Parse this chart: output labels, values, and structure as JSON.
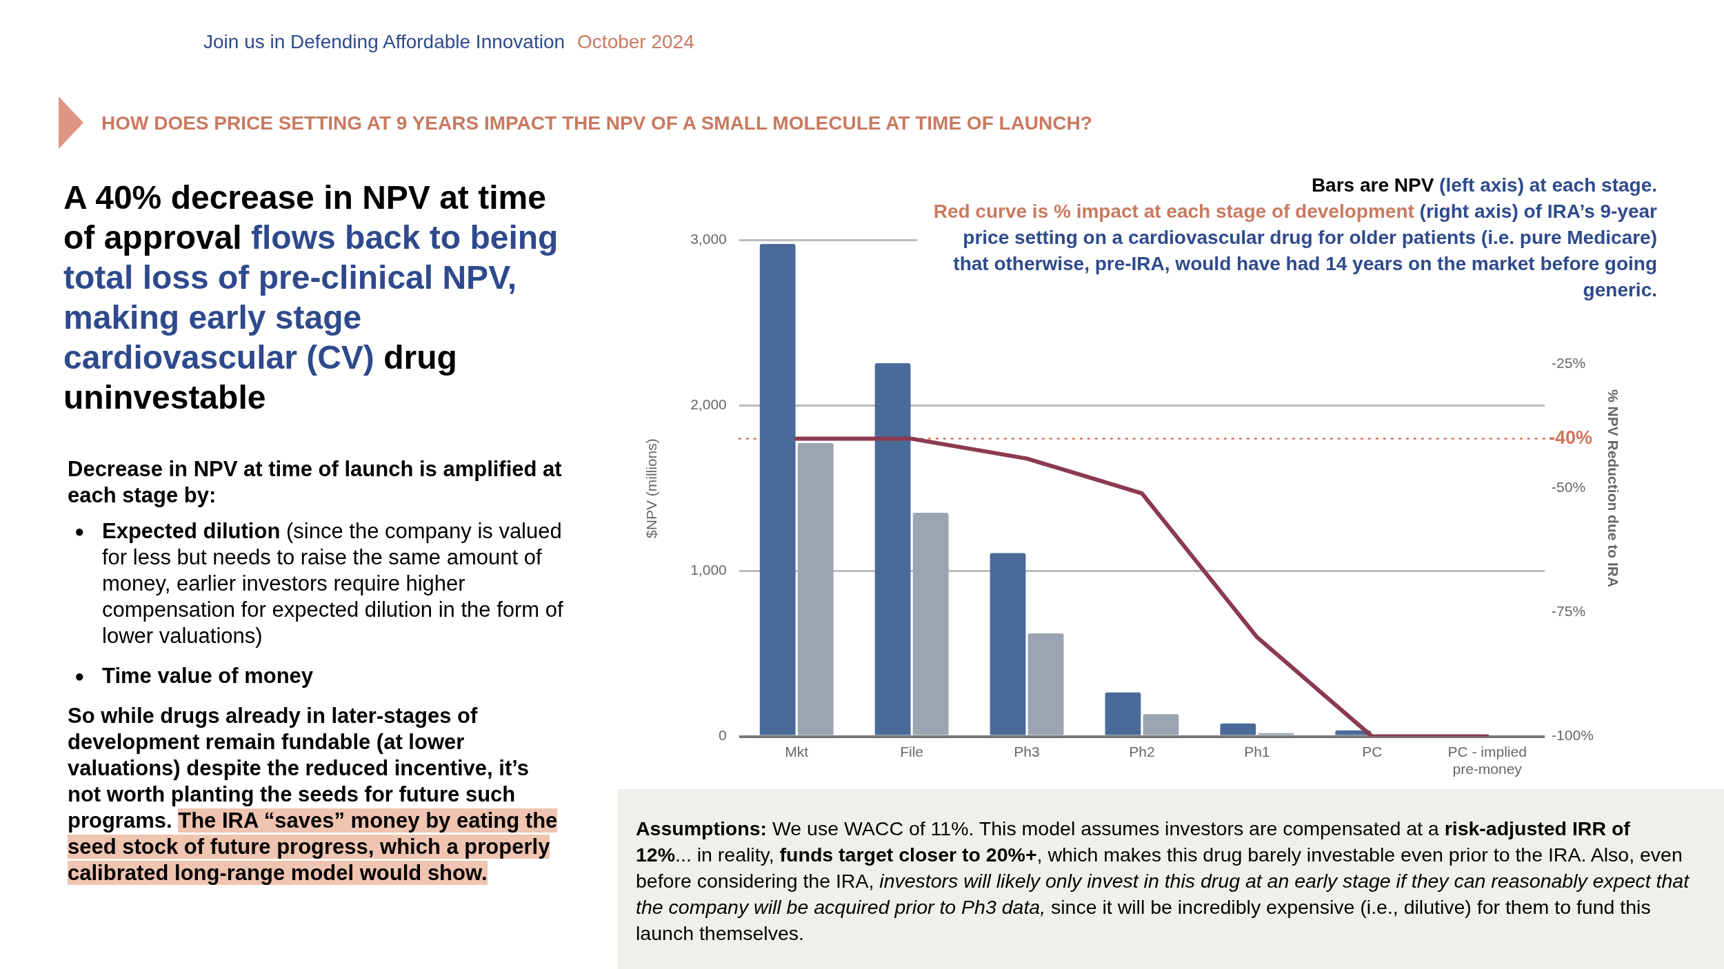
{
  "chart_data": {
    "type": "bar",
    "title": "HOW DOES PRICE SETTING AT 9 YEARS IMPACT THE NPV OF A SMALL MOLECULE AT TIME OF LAUNCH?",
    "ylabel": "$NPV (millions)",
    "y2label": "% NPV Reduction due to IRA",
    "categories": [
      "Mkt",
      "File",
      "Ph3",
      "Ph2",
      "Ph1",
      "PC",
      "PC - implied pre-money"
    ],
    "series": [
      {
        "color": "#4a6a99",
        "values": [
          2978,
          2257,
          1109,
          266,
          79,
          37,
          null
        ]
      },
      {
        "color": "#9aa5b1",
        "values": [
          1774,
          1353,
          623,
          135,
          20,
          null,
          null
        ]
      },
      {
        "type": "line",
        "axis": "y2",
        "color": "#8b3a4f",
        "values": [
          -40,
          -40,
          -44,
          -51,
          -80,
          -100,
          -100
        ]
      }
    ],
    "ylim": [
      0,
      3000
    ],
    "yticks": [
      0,
      {
        "value": 1000,
        "label": "1,000"
      },
      {
        "value": 2000,
        "label": "2,000"
      },
      {
        "value": 3000,
        "label": "3,000"
      }
    ],
    "y2lim": [
      -100,
      0
    ],
    "y2ticks": [
      {
        "value": -25,
        "label": "-25%"
      },
      {
        "value": -50,
        "label": "-50%"
      },
      {
        "value": -75,
        "label": "-75%"
      },
      {
        "value": -100,
        "label": "-100%"
      }
    ],
    "ref_lines": [
      {
        "axis": "y2",
        "value": -40,
        "label": "-40%",
        "color": "#d0745a",
        "line_style": "dotted"
      }
    ],
    "grid": "y",
    "legend": false,
    "marker": "none",
    "line_style": "solid",
    "annotations": [
      "Join us in Defending Affordable Innovation",
      "October 2024",
      "A 40% decrease in NPV at time of approval ",
      "flows back to being total loss of pre-clinical NPV, making early stage cardiovascular (CV)",
      " drug uninvestable",
      "Decrease in NPV at time of launch is amplified at each stage by:",
      "Expected dilution",
      " (since the company is valued for less but needs to raise the same amount of money, earlier investors require higher compensation for expected dilution in the form of lower valuations)",
      "Time value of money",
      "So while drugs already in later-stages of development remain fundable (at lower valuations) despite the reduced incentive, it’s not worth planting the seeds for future such programs. ",
      "The IRA “saves” money by eating the seed stock of future progress, which a properly calibrated long-range model would show.",
      "Bars are NPV",
      " (left axis) at each stage.",
      "Red curve is % impact at each stage of development",
      " (right axis) of IRA’s 9-year price setting on a cardiovascular drug for older patients (i.e. pure Medicare) that otherwise, pre-IRA, would have had 14 years on the market before going generic.",
      "Assumptions:",
      " We use WACC of 11%. This model assumes investors are compensated at a ",
      "risk-adjusted IRR of 12%",
      "... in reality, ",
      "funds target closer to 20%+",
      ", which makes this drug barely investable even prior to the IRA. Also, even before considering the IRA, ",
      "investors will likely only invest in this drug at an early stage if they can reasonably expect that the company will be acquired prior to Ph3 data,",
      " since it will be incredibly expensive (i.e., dilutive) for them to fund this launch themselves.",
      "●",
      "●"
    ]
  }
}
